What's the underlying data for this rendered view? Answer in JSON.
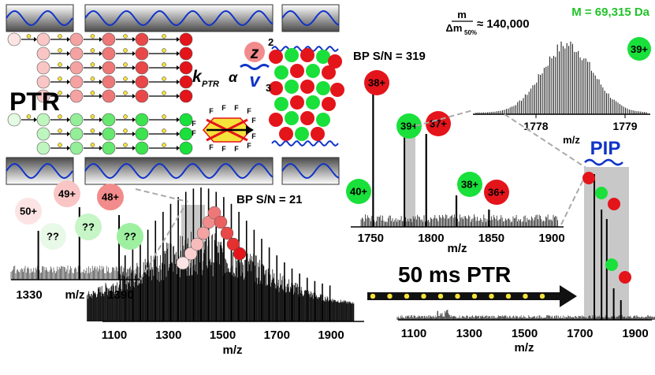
{
  "colors": {
    "red": "#e4141b",
    "green": "#19e03a",
    "pink": "#f28b8b",
    "lightpink": "#fbe0e0",
    "lightgreen": "#c6f5c6",
    "blue": "#1034c8",
    "title_green": "#22c22a",
    "gray_band": "#c8c8c8",
    "yellow": "#f5e23a"
  },
  "ptr_scheme": {
    "label": "PTR",
    "rate_equation": {
      "k": "k",
      "k_sub": "PTR",
      "alpha": "α",
      "z": "z",
      "z_exp": "2",
      "v": "v",
      "v_exp": "3"
    },
    "anion_label": "F"
  },
  "spec_top_right": {
    "resolution_expr": {
      "numerator": "m",
      "denominator": "Δm",
      "den_sub": "50%",
      "value": "≈ 140,000"
    },
    "mass_label": "M = 69,315 Da",
    "charge_label": "39+",
    "x_ticks": [
      "1778",
      "1779"
    ],
    "x_axis_label": "m/z"
  },
  "spec_middle": {
    "bp_sn": "BP S/N = 319",
    "x_ticks": [
      "1750",
      "1800",
      "1850",
      "1900"
    ],
    "x_axis_label": "m/z",
    "peak_labels": [
      "38+",
      "39+",
      "37+",
      "40+",
      "38+",
      "36+"
    ]
  },
  "spec_bottom_left": {
    "bp_sn": "BP S/N = 21",
    "x_ticks": [
      "1100",
      "1300",
      "1500",
      "1700",
      "1900"
    ],
    "x_axis_label": "m/z"
  },
  "spec_inset": {
    "x_ticks": [
      "1330",
      "1390"
    ],
    "x_axis_label": "m/z",
    "peak_labels": [
      "50+",
      "49+",
      "48+",
      "??",
      "??",
      "??"
    ]
  },
  "spec_bottom_right": {
    "ptr_label": "50 ms PTR",
    "pip_label": "PIP",
    "x_ticks": [
      "1100",
      "1300",
      "1500",
      "1700",
      "1900"
    ],
    "x_axis_label": "m/z"
  }
}
